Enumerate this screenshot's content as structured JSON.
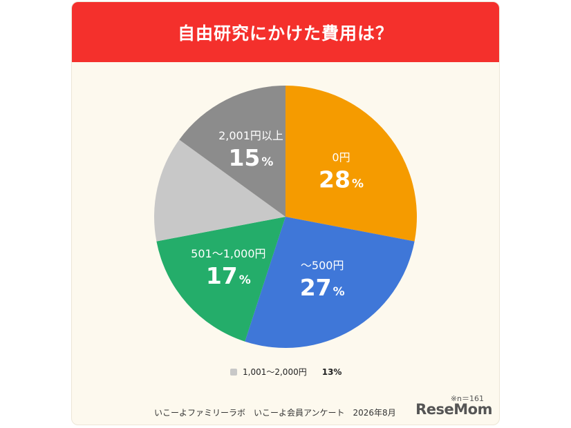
{
  "title": "自由研究にかけた費用は？",
  "chart_data": {
    "type": "pie",
    "title": "自由研究にかけた費用は？",
    "slices": [
      {
        "label": "0円",
        "value": 28,
        "display": "28",
        "color": "#f59b00"
      },
      {
        "label": "〜500円",
        "value": 27,
        "display": "27",
        "color": "#3f77d8"
      },
      {
        "label": "501〜1,000円",
        "value": 17,
        "display": "17",
        "color": "#24ad6a"
      },
      {
        "label": "1,001〜2,000円",
        "value": 13,
        "display": "13%",
        "color": "#c8c8c8",
        "in_legend": true
      },
      {
        "label": "2,001円以上",
        "value": 15,
        "display": "15",
        "color": "#8c8c8c"
      }
    ],
    "percent_sign": "%",
    "start": "top, clockwise"
  },
  "legend": {
    "label": "1,001〜2,000円",
    "value": "13%"
  },
  "note": "※n＝161",
  "source": "いこーよファミリーラボ　いこーよ会員アンケート　2026年8月",
  "logo": "ReseMom"
}
